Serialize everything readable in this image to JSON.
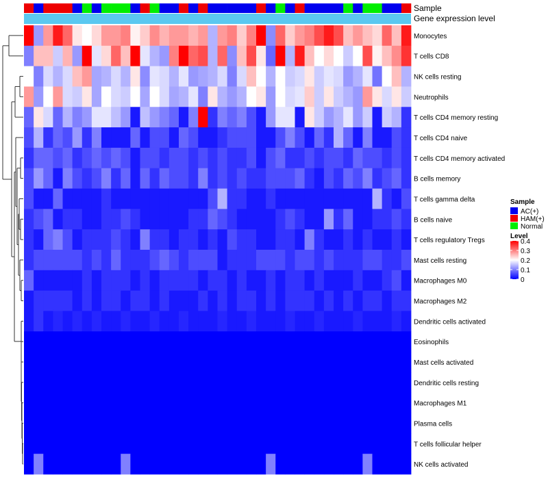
{
  "chart_data": {
    "type": "heatmap",
    "annotations": {
      "sample_label": "Sample",
      "expression_label": "Gene expression level",
      "sample_groups": [
        "HAM(+)",
        "AC(+)",
        "HAM(+)",
        "HAM(+)",
        "HAM(+)",
        "AC(+)",
        "Normal",
        "AC(+)",
        "Normal",
        "Normal",
        "Normal",
        "AC(+)",
        "HAM(+)",
        "Normal",
        "AC(+)",
        "AC(+)",
        "HAM(+)",
        "AC(+)",
        "HAM(+)",
        "AC(+)",
        "AC(+)",
        "AC(+)",
        "AC(+)",
        "AC(+)",
        "HAM(+)",
        "AC(+)",
        "Normal",
        "AC(+)",
        "HAM(+)",
        "AC(+)",
        "AC(+)",
        "AC(+)",
        "AC(+)",
        "Normal",
        "AC(+)",
        "Normal",
        "Normal",
        "AC(+)",
        "AC(+)",
        "HAM(+)"
      ]
    },
    "columns": 40,
    "rows": [
      {
        "label": "Monocytes",
        "values": [
          0.4,
          0.12,
          0.28,
          0.38,
          0.32,
          0.22,
          0.2,
          0.23,
          0.28,
          0.28,
          0.3,
          0.21,
          0.24,
          0.29,
          0.26,
          0.28,
          0.28,
          0.26,
          0.28,
          0.14,
          0.28,
          0.3,
          0.24,
          0.3,
          0.4,
          0.11,
          0.32,
          0.24,
          0.28,
          0.3,
          0.34,
          0.38,
          0.34,
          0.25,
          0.28,
          0.25,
          0.23,
          0.32,
          0.25,
          0.38
        ]
      },
      {
        "label": "T cells CD8",
        "values": [
          0.1,
          0.25,
          0.25,
          0.16,
          0.26,
          0.12,
          0.4,
          0.18,
          0.23,
          0.32,
          0.25,
          0.4,
          0.18,
          0.14,
          0.12,
          0.3,
          0.4,
          0.32,
          0.34,
          0.14,
          0.32,
          0.11,
          0.25,
          0.34,
          0.22,
          0.08,
          0.4,
          0.14,
          0.38,
          0.25,
          0.2,
          0.23,
          0.2,
          0.16,
          0.2,
          0.34,
          0.21,
          0.25,
          0.29,
          0.36
        ]
      },
      {
        "label": "NK cells resting",
        "values": [
          0.2,
          0.1,
          0.17,
          0.14,
          0.17,
          0.25,
          0.28,
          0.13,
          0.14,
          0.17,
          0.14,
          0.22,
          0.11,
          0.18,
          0.17,
          0.14,
          0.18,
          0.12,
          0.13,
          0.14,
          0.17,
          0.1,
          0.17,
          0.25,
          0.2,
          0.14,
          0.2,
          0.16,
          0.17,
          0.22,
          0.16,
          0.18,
          0.17,
          0.12,
          0.14,
          0.18,
          0.09,
          0.2,
          0.25,
          0.14
        ]
      },
      {
        "label": "Neutrophils",
        "values": [
          0.28,
          0.12,
          0.2,
          0.28,
          0.17,
          0.16,
          0.22,
          0.13,
          0.2,
          0.17,
          0.16,
          0.2,
          0.13,
          0.2,
          0.17,
          0.13,
          0.14,
          0.18,
          0.1,
          0.22,
          0.14,
          0.12,
          0.14,
          0.2,
          0.22,
          0.12,
          0.2,
          0.17,
          0.18,
          0.24,
          0.16,
          0.22,
          0.16,
          0.14,
          0.12,
          0.28,
          0.22,
          0.17,
          0.22,
          0.16
        ]
      },
      {
        "label": "T cells CD4 memory resting",
        "values": [
          0.08,
          0.22,
          0.17,
          0.08,
          0.14,
          0.1,
          0.12,
          0.18,
          0.18,
          0.15,
          0.12,
          0.02,
          0.15,
          0.12,
          0.1,
          0.08,
          0.02,
          0.1,
          0.4,
          0.04,
          0.1,
          0.08,
          0.1,
          0.06,
          0.02,
          0.12,
          0.18,
          0.18,
          0.02,
          0.22,
          0.16,
          0.12,
          0.14,
          0.18,
          0.12,
          0.16,
          0.02,
          0.16,
          0.14,
          0.04
        ]
      },
      {
        "label": "T cells CD4 naive",
        "values": [
          0.06,
          0.14,
          0.04,
          0.08,
          0.06,
          0.12,
          0.04,
          0.1,
          0.02,
          0.02,
          0.02,
          0.08,
          0.02,
          0.06,
          0.06,
          0.02,
          0.08,
          0.06,
          0.02,
          0.02,
          0.04,
          0.06,
          0.06,
          0.06,
          0.02,
          0.02,
          0.06,
          0.1,
          0.06,
          0.02,
          0.08,
          0.04,
          0.14,
          0.08,
          0.02,
          0.1,
          0.02,
          0.02,
          0.06,
          0.04
        ]
      },
      {
        "label": "T cells CD4 memory activated",
        "values": [
          0.04,
          0.08,
          0.08,
          0.06,
          0.08,
          0.04,
          0.06,
          0.08,
          0.06,
          0.08,
          0.06,
          0.02,
          0.06,
          0.06,
          0.04,
          0.06,
          0.06,
          0.04,
          0.06,
          0.04,
          0.06,
          0.04,
          0.04,
          0.06,
          0.02,
          0.06,
          0.08,
          0.04,
          0.04,
          0.06,
          0.04,
          0.06,
          0.06,
          0.04,
          0.08,
          0.06,
          0.06,
          0.04,
          0.06,
          0.04
        ]
      },
      {
        "label": "B cells memory",
        "values": [
          0.06,
          0.12,
          0.08,
          0.02,
          0.1,
          0.06,
          0.04,
          0.06,
          0.1,
          0.04,
          0.08,
          0.02,
          0.08,
          0.04,
          0.08,
          0.06,
          0.06,
          0.04,
          0.1,
          0.04,
          0.06,
          0.04,
          0.06,
          0.04,
          0.04,
          0.06,
          0.06,
          0.06,
          0.08,
          0.04,
          0.02,
          0.06,
          0.04,
          0.08,
          0.06,
          0.1,
          0.04,
          0.06,
          0.08,
          0.04
        ]
      },
      {
        "label": "T cells gamma delta",
        "values": [
          0.06,
          0.02,
          0.02,
          0.08,
          0.02,
          0.02,
          0.02,
          0.02,
          0.04,
          0.02,
          0.02,
          0.02,
          0.02,
          0.02,
          0.02,
          0.02,
          0.02,
          0.02,
          0.02,
          0.06,
          0.14,
          0.04,
          0.04,
          0.02,
          0.02,
          0.04,
          0.02,
          0.02,
          0.02,
          0.02,
          0.02,
          0.02,
          0.02,
          0.02,
          0.02,
          0.02,
          0.14,
          0.04,
          0.02,
          0.06
        ]
      },
      {
        "label": "B cells naive",
        "values": [
          0.04,
          0.06,
          0.08,
          0.02,
          0.04,
          0.04,
          0.02,
          0.02,
          0.04,
          0.04,
          0.06,
          0.04,
          0.02,
          0.02,
          0.02,
          0.02,
          0.02,
          0.04,
          0.04,
          0.08,
          0.06,
          0.04,
          0.02,
          0.02,
          0.02,
          0.02,
          0.04,
          0.06,
          0.04,
          0.02,
          0.02,
          0.12,
          0.04,
          0.08,
          0.02,
          0.02,
          0.04,
          0.04,
          0.06,
          0.04
        ]
      },
      {
        "label": "T cells regulatory  Tregs",
        "values": [
          0.04,
          0.02,
          0.08,
          0.1,
          0.06,
          0.02,
          0.04,
          0.04,
          0.04,
          0.06,
          0.04,
          0.02,
          0.1,
          0.04,
          0.04,
          0.02,
          0.04,
          0.04,
          0.02,
          0.04,
          0.02,
          0.06,
          0.04,
          0.04,
          0.02,
          0.02,
          0.04,
          0.04,
          0.02,
          0.1,
          0.04,
          0.02,
          0.02,
          0.04,
          0.02,
          0.04,
          0.02,
          0.02,
          0.04,
          0.02
        ]
      },
      {
        "label": "Mast cells resting",
        "values": [
          0.04,
          0.06,
          0.06,
          0.06,
          0.06,
          0.06,
          0.04,
          0.06,
          0.04,
          0.08,
          0.04,
          0.04,
          0.04,
          0.06,
          0.08,
          0.06,
          0.04,
          0.06,
          0.06,
          0.06,
          0.02,
          0.04,
          0.04,
          0.04,
          0.06,
          0.06,
          0.06,
          0.04,
          0.06,
          0.06,
          0.04,
          0.06,
          0.04,
          0.04,
          0.04,
          0.06,
          0.06,
          0.04,
          0.04,
          0.06
        ]
      },
      {
        "label": "Macrophages M0",
        "values": [
          0.08,
          0.02,
          0.02,
          0.02,
          0.02,
          0.02,
          0.04,
          0.02,
          0.04,
          0.04,
          0.04,
          0.02,
          0.04,
          0.02,
          0.04,
          0.04,
          0.04,
          0.04,
          0.02,
          0.04,
          0.04,
          0.02,
          0.04,
          0.02,
          0.02,
          0.04,
          0.02,
          0.04,
          0.04,
          0.02,
          0.04,
          0.02,
          0.02,
          0.02,
          0.04,
          0.02,
          0.02,
          0.04,
          0.06,
          0.02
        ]
      },
      {
        "label": "Macrophages M2",
        "values": [
          0.02,
          0.04,
          0.04,
          0.04,
          0.04,
          0.02,
          0.04,
          0.02,
          0.04,
          0.04,
          0.02,
          0.04,
          0.04,
          0.02,
          0.04,
          0.02,
          0.02,
          0.02,
          0.04,
          0.02,
          0.04,
          0.02,
          0.04,
          0.04,
          0.02,
          0.04,
          0.02,
          0.04,
          0.04,
          0.04,
          0.02,
          0.04,
          0.02,
          0.04,
          0.02,
          0.04,
          0.04,
          0.02,
          0.04,
          0.04
        ]
      },
      {
        "label": "Dendritic cells activated",
        "values": [
          0.02,
          0.04,
          0.02,
          0.03,
          0.02,
          0.03,
          0.02,
          0.03,
          0.02,
          0.02,
          0.03,
          0.02,
          0.02,
          0.03,
          0.02,
          0.02,
          0.03,
          0.02,
          0.02,
          0.02,
          0.03,
          0.02,
          0.02,
          0.03,
          0.02,
          0.02,
          0.02,
          0.03,
          0.02,
          0.02,
          0.03,
          0.02,
          0.02,
          0.02,
          0.03,
          0.02,
          0.02,
          0.02,
          0.03,
          0.02
        ]
      },
      {
        "label": "Eosinophils",
        "values": [
          0,
          0,
          0,
          0,
          0,
          0,
          0,
          0,
          0,
          0,
          0,
          0,
          0,
          0,
          0,
          0,
          0,
          0,
          0,
          0,
          0,
          0,
          0,
          0,
          0,
          0,
          0,
          0,
          0,
          0,
          0,
          0,
          0,
          0,
          0,
          0,
          0,
          0,
          0,
          0
        ]
      },
      {
        "label": "Mast cells activated",
        "values": [
          0,
          0,
          0,
          0,
          0,
          0,
          0,
          0,
          0,
          0,
          0,
          0,
          0,
          0,
          0,
          0,
          0,
          0,
          0,
          0,
          0,
          0,
          0,
          0,
          0,
          0,
          0,
          0,
          0,
          0,
          0,
          0,
          0,
          0,
          0,
          0,
          0,
          0,
          0,
          0
        ]
      },
      {
        "label": "Dendritic cells resting",
        "values": [
          0,
          0,
          0,
          0,
          0,
          0,
          0,
          0,
          0,
          0,
          0,
          0,
          0,
          0,
          0,
          0,
          0,
          0,
          0,
          0,
          0,
          0,
          0,
          0,
          0,
          0,
          0,
          0,
          0,
          0,
          0,
          0,
          0,
          0,
          0,
          0,
          0,
          0,
          0,
          0
        ]
      },
      {
        "label": "Macrophages M1",
        "values": [
          0,
          0,
          0,
          0,
          0,
          0,
          0,
          0,
          0,
          0,
          0,
          0,
          0,
          0,
          0,
          0,
          0,
          0,
          0,
          0,
          0,
          0,
          0,
          0,
          0,
          0,
          0,
          0,
          0,
          0,
          0,
          0,
          0,
          0,
          0,
          0,
          0,
          0,
          0,
          0
        ]
      },
      {
        "label": "Plasma cells",
        "values": [
          0,
          0,
          0,
          0,
          0,
          0,
          0,
          0,
          0,
          0,
          0,
          0,
          0,
          0,
          0,
          0,
          0,
          0,
          0,
          0,
          0,
          0,
          0,
          0,
          0,
          0,
          0,
          0,
          0,
          0,
          0,
          0,
          0,
          0,
          0,
          0,
          0,
          0,
          0,
          0
        ]
      },
      {
        "label": "T cells follicular helper",
        "values": [
          0,
          0,
          0,
          0,
          0,
          0,
          0,
          0,
          0,
          0,
          0,
          0,
          0,
          0,
          0,
          0,
          0,
          0,
          0,
          0,
          0,
          0,
          0,
          0,
          0,
          0,
          0,
          0,
          0,
          0,
          0,
          0,
          0,
          0,
          0,
          0,
          0,
          0,
          0,
          0
        ]
      },
      {
        "label": "NK cells activated",
        "values": [
          0,
          0.1,
          0,
          0,
          0,
          0,
          0,
          0,
          0,
          0,
          0.1,
          0,
          0,
          0,
          0,
          0,
          0,
          0,
          0,
          0,
          0,
          0,
          0,
          0,
          0,
          0.1,
          0,
          0,
          0,
          0,
          0,
          0,
          0,
          0,
          0,
          0.1,
          0,
          0,
          0,
          0
        ]
      }
    ],
    "legend_sample": {
      "title": "Sample",
      "items": [
        {
          "label": "AC(+)",
          "color": "#0000ee"
        },
        {
          "label": "HAM(+)",
          "color": "#ee0000"
        },
        {
          "label": "Normal",
          "color": "#00ee00"
        }
      ]
    },
    "legend_level": {
      "title": "Level",
      "ticks": [
        "0.4",
        "0.3",
        "0.2",
        "0.1",
        "0"
      ],
      "tick_values": [
        0.4,
        0.3,
        0.2,
        0.1,
        0
      ],
      "range": [
        0,
        0.4
      ],
      "colors": {
        "low": "#0000ff",
        "mid": "#ffffff",
        "high": "#ff0000"
      }
    },
    "expression_bar_color": "#5bc8f0"
  }
}
